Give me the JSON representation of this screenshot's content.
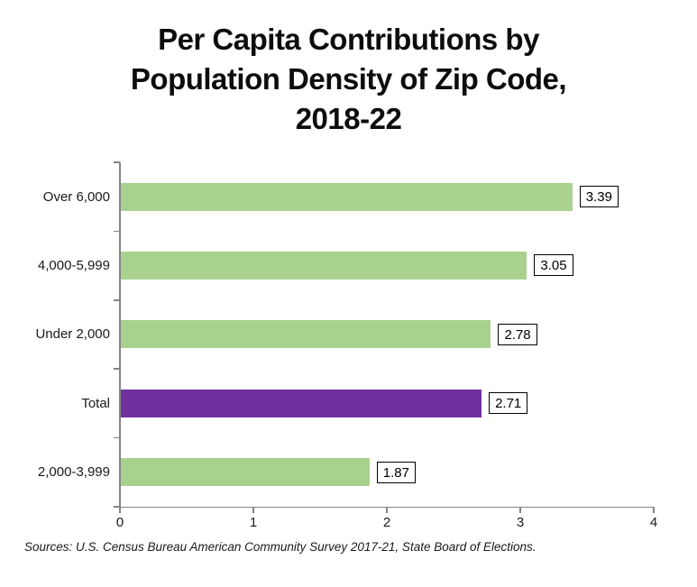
{
  "title_lines": [
    "Per Capita Contributions by",
    "Population Density of Zip Code,",
    "2018-22"
  ],
  "source_note": "Sources: U.S. Census Bureau American Community Survey 2017-21, State Board of Elections.",
  "colors": {
    "bar_default": "#a9d18e",
    "bar_highlight": "#7030a0",
    "axis": "#848484",
    "label_box_border": "#000000",
    "label_box_background": "#ffffff",
    "text": "#1a1a1a"
  },
  "chart_data": {
    "type": "bar",
    "orientation": "horizontal",
    "title": "Per Capita Contributions by Population Density of Zip Code, 2018-22",
    "categories": [
      "Over 6,000",
      "4,000-5,999",
      "Under 2,000",
      "Total",
      "2,000-3,999"
    ],
    "values": [
      3.39,
      3.05,
      2.78,
      2.71,
      1.87
    ],
    "data_labels": [
      "3.39",
      "3.05",
      "2.78",
      "2.71",
      "1.87"
    ],
    "highlight_category": "Total",
    "xlabel": "",
    "ylabel": "",
    "xlim": [
      0,
      4
    ],
    "x_ticks": [
      "0",
      "1",
      "2",
      "3",
      "4"
    ],
    "grid": false,
    "legend": false,
    "data_labels_boxed": true
  }
}
